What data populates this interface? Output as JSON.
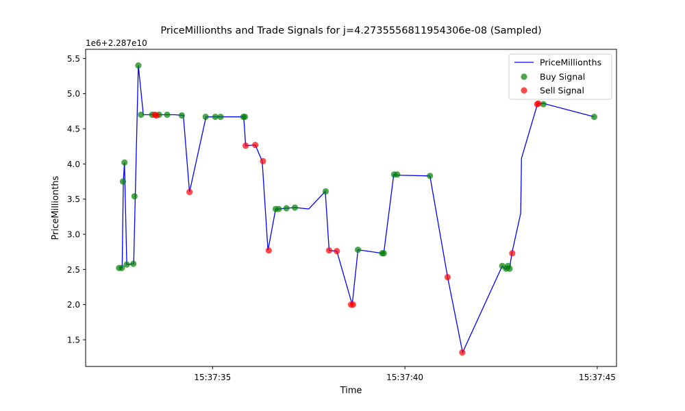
{
  "chart_data": {
    "type": "scatter",
    "title": "PriceMillionths and Trade Signals for j=4.2735556811954306e-08 (Sampled)",
    "xlabel": "Time",
    "ylabel": "PriceMillionths",
    "offset_label": "1e6+2.287e10",
    "x_unit": "seconds after 15:37:00",
    "xlim": [
      31.7,
      45.5
    ],
    "ylim": [
      1.12,
      5.63
    ],
    "x_ticks": [
      {
        "value": 35,
        "label": "15:37:35"
      },
      {
        "value": 40,
        "label": "15:37:40"
      },
      {
        "value": 45,
        "label": "15:37:45"
      }
    ],
    "y_ticks": [
      {
        "value": 1.5,
        "label": "1.5"
      },
      {
        "value": 2.0,
        "label": "2.0"
      },
      {
        "value": 2.5,
        "label": "2.5"
      },
      {
        "value": 3.0,
        "label": "3.0"
      },
      {
        "value": 3.5,
        "label": "3.5"
      },
      {
        "value": 4.0,
        "label": "4.0"
      },
      {
        "value": 4.5,
        "label": "4.5"
      },
      {
        "value": 5.0,
        "label": "5.0"
      },
      {
        "value": 5.5,
        "label": "5.5"
      }
    ],
    "grid": false,
    "legend_position": "top-right",
    "series": [
      {
        "name": "PriceMillionths",
        "kind": "line",
        "color": "#0000ff",
        "points": [
          [
            32.57,
            2.52
          ],
          [
            32.65,
            2.52
          ],
          [
            32.68,
            3.75
          ],
          [
            32.71,
            4.02
          ],
          [
            32.77,
            2.57
          ],
          [
            32.95,
            2.58
          ],
          [
            32.99,
            3.54
          ],
          [
            33.07,
            5.4
          ],
          [
            33.2,
            4.7
          ],
          [
            33.43,
            4.7
          ],
          [
            33.61,
            4.7
          ],
          [
            33.78,
            4.7
          ],
          [
            34.02,
            4.7
          ],
          [
            34.24,
            4.69
          ],
          [
            34.4,
            3.6
          ],
          [
            34.83,
            4.67
          ],
          [
            35.07,
            4.67
          ],
          [
            35.19,
            4.67
          ],
          [
            35.81,
            4.67
          ],
          [
            35.86,
            4.26
          ],
          [
            36.11,
            4.27
          ],
          [
            36.29,
            4.04
          ],
          [
            36.44,
            2.77
          ],
          [
            36.64,
            3.36
          ],
          [
            36.72,
            3.36
          ],
          [
            36.92,
            3.37
          ],
          [
            37.14,
            3.38
          ],
          [
            37.5,
            3.36
          ],
          [
            37.93,
            3.61
          ],
          [
            38.03,
            2.77
          ],
          [
            38.23,
            2.76
          ],
          [
            38.63,
            2.0
          ],
          [
            38.78,
            2.78
          ],
          [
            39.41,
            2.73
          ],
          [
            39.45,
            2.73
          ],
          [
            39.71,
            3.85
          ],
          [
            39.82,
            3.84
          ],
          [
            40.65,
            3.83
          ],
          [
            41.11,
            2.39
          ],
          [
            41.5,
            1.32
          ],
          [
            42.53,
            2.55
          ],
          [
            42.62,
            2.5
          ],
          [
            42.67,
            2.55
          ],
          [
            42.72,
            2.51
          ],
          [
            42.78,
            2.73
          ],
          [
            43.01,
            3.3
          ],
          [
            43.03,
            4.08
          ],
          [
            43.45,
            4.86
          ],
          [
            43.51,
            4.86
          ],
          [
            43.6,
            4.86
          ],
          [
            44.92,
            4.67
          ]
        ]
      },
      {
        "name": "Buy Signal",
        "kind": "scatter",
        "color": "#008000",
        "points": [
          [
            32.57,
            2.52
          ],
          [
            32.64,
            2.52
          ],
          [
            32.67,
            3.75
          ],
          [
            32.71,
            4.02
          ],
          [
            32.77,
            2.57
          ],
          [
            32.94,
            2.58
          ],
          [
            32.97,
            3.54
          ],
          [
            33.07,
            5.4
          ],
          [
            33.14,
            4.7
          ],
          [
            33.43,
            4.7
          ],
          [
            33.61,
            4.7
          ],
          [
            33.82,
            4.7
          ],
          [
            34.2,
            4.69
          ],
          [
            34.82,
            4.67
          ],
          [
            35.07,
            4.67
          ],
          [
            35.21,
            4.67
          ],
          [
            35.8,
            4.67
          ],
          [
            35.84,
            4.67
          ],
          [
            36.64,
            3.36
          ],
          [
            36.72,
            3.36
          ],
          [
            36.92,
            3.37
          ],
          [
            37.14,
            3.38
          ],
          [
            37.94,
            3.61
          ],
          [
            38.78,
            2.78
          ],
          [
            39.41,
            2.73
          ],
          [
            39.45,
            2.73
          ],
          [
            39.72,
            3.85
          ],
          [
            39.8,
            3.85
          ],
          [
            40.65,
            3.83
          ],
          [
            42.53,
            2.55
          ],
          [
            42.63,
            2.51
          ],
          [
            42.68,
            2.55
          ],
          [
            42.72,
            2.51
          ],
          [
            43.6,
            4.85
          ],
          [
            44.92,
            4.67
          ]
        ]
      },
      {
        "name": "Sell Signal",
        "kind": "scatter",
        "color": "#ff0000",
        "points": [
          [
            33.5,
            4.7
          ],
          [
            33.54,
            4.69
          ],
          [
            34.4,
            3.6
          ],
          [
            35.86,
            4.26
          ],
          [
            36.11,
            4.27
          ],
          [
            36.31,
            4.04
          ],
          [
            36.46,
            2.77
          ],
          [
            38.03,
            2.77
          ],
          [
            38.23,
            2.76
          ],
          [
            38.6,
            2.0
          ],
          [
            38.65,
            2.0
          ],
          [
            41.11,
            2.39
          ],
          [
            41.49,
            1.32
          ],
          [
            42.79,
            2.73
          ],
          [
            43.44,
            4.85
          ],
          [
            43.47,
            4.86
          ]
        ]
      }
    ]
  }
}
